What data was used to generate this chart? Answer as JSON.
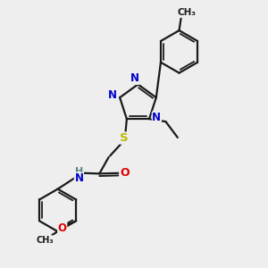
{
  "bg_color": "#eeeeee",
  "bond_color": "#1a1a1a",
  "bond_width": 1.6,
  "atom_colors": {
    "N": "#0000cc",
    "O": "#dd0000",
    "S": "#bbbb00",
    "H": "#558888",
    "C": "#1a1a1a"
  },
  "font_size": 8.5,
  "fig_size": [
    3.0,
    3.0
  ],
  "dpi": 100
}
